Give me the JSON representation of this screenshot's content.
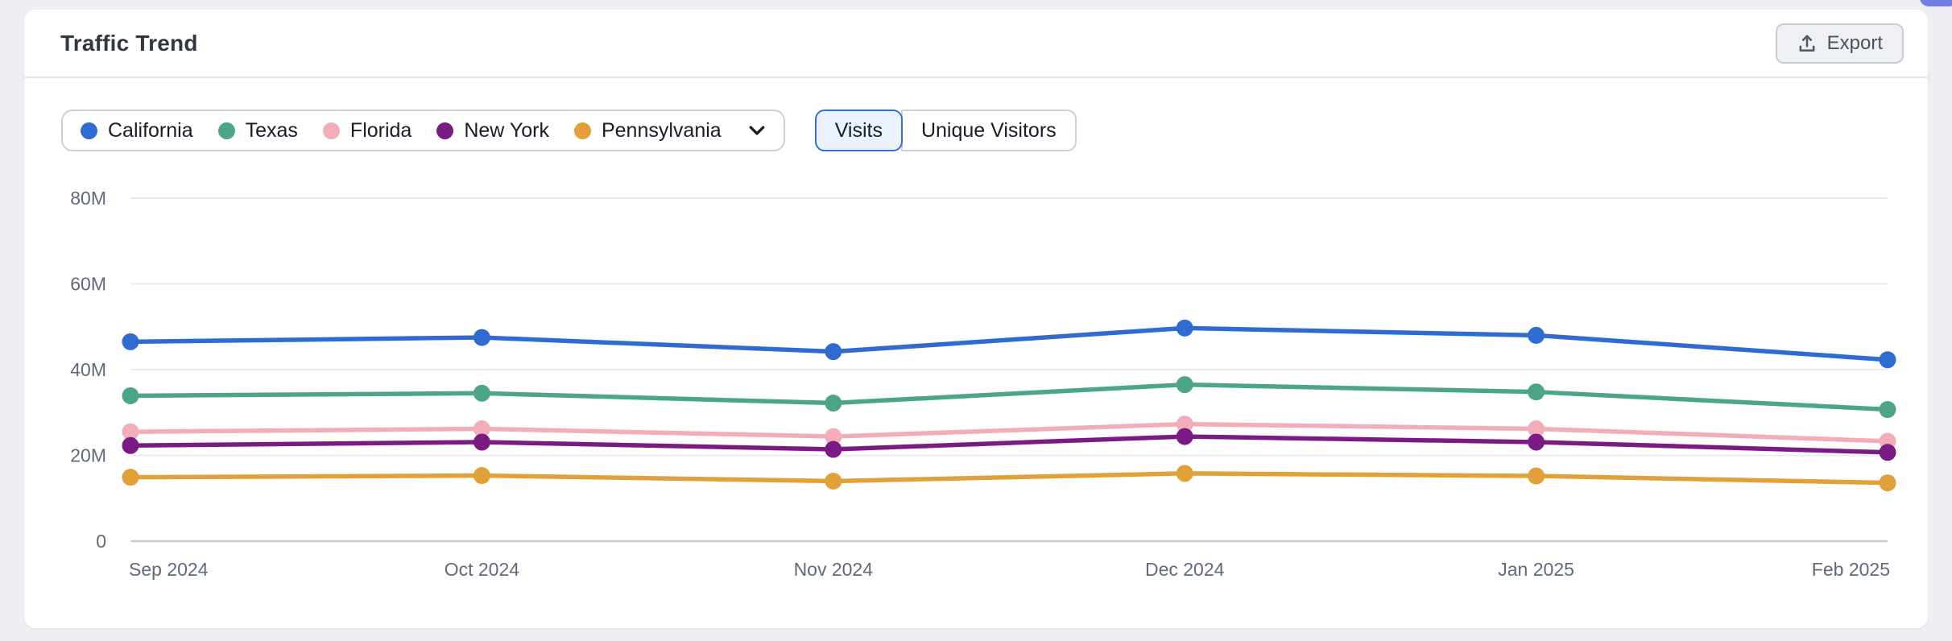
{
  "page": {
    "background": "#edeff3"
  },
  "corner_widget": {
    "color": "#6f7de4"
  },
  "header": {
    "title": "Traffic Trend",
    "export_label": "Export"
  },
  "legend": {
    "items": [
      {
        "label": "California",
        "color": "#2f6bd0"
      },
      {
        "label": "Texas",
        "color": "#4ba687"
      },
      {
        "label": "Florida",
        "color": "#f2adb9"
      },
      {
        "label": "New York",
        "color": "#791b83"
      },
      {
        "label": "Pennsylvania",
        "color": "#e2a038"
      }
    ]
  },
  "metric_toggle": {
    "options": [
      {
        "label": "Visits",
        "selected": true
      },
      {
        "label": "Unique Visitors",
        "selected": false
      }
    ]
  },
  "chart_data": {
    "type": "line",
    "title": "Traffic Trend",
    "xlabel": "",
    "ylabel": "Visits",
    "unit": "millions of visits",
    "x": [
      "Sep 2024",
      "Oct 2024",
      "Nov 2024",
      "Dec 2024",
      "Jan 2025",
      "Feb 2025"
    ],
    "series": [
      {
        "name": "California",
        "color": "#2f6bd0",
        "values": [
          46.5,
          47.5,
          44.2,
          49.7,
          48.0,
          42.3
        ]
      },
      {
        "name": "Texas",
        "color": "#4ba687",
        "values": [
          33.9,
          34.5,
          32.2,
          36.5,
          34.8,
          30.7
        ]
      },
      {
        "name": "Florida",
        "color": "#f2adb9",
        "values": [
          25.5,
          26.2,
          24.4,
          27.3,
          26.2,
          23.3
        ]
      },
      {
        "name": "New York",
        "color": "#791b83",
        "values": [
          22.3,
          23.1,
          21.4,
          24.4,
          23.1,
          20.7
        ]
      },
      {
        "name": "Pennsylvania",
        "color": "#e2a038",
        "values": [
          14.9,
          15.3,
          14.0,
          15.8,
          15.2,
          13.6
        ]
      }
    ],
    "ylim": [
      0,
      80
    ],
    "yticks": [
      {
        "value": 0,
        "label": "0"
      },
      {
        "value": 20,
        "label": "20M"
      },
      {
        "value": 40,
        "label": "40M"
      },
      {
        "value": 60,
        "label": "60M"
      },
      {
        "value": 80,
        "label": "80M"
      }
    ],
    "grid": true,
    "legend_position": "top",
    "selected_metric": "Visits"
  },
  "chart_style": {
    "grid_color": "#e9ebf0",
    "axis_color": "#c8ccd4",
    "tick_text_color": "#61697a"
  }
}
